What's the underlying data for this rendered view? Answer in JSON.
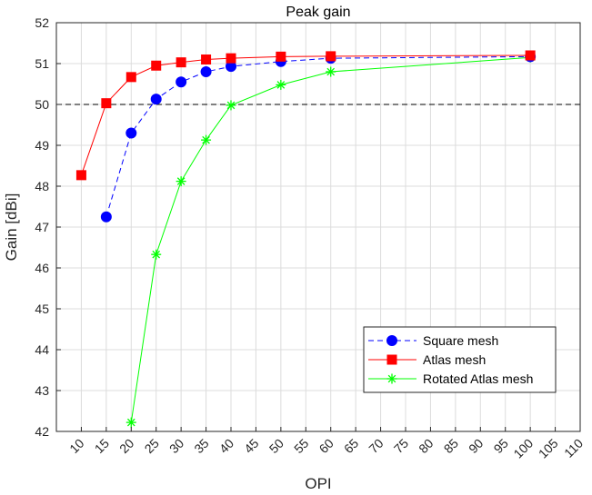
{
  "chart_data": {
    "type": "line",
    "title": "Peak gain",
    "xlabel": "OPI",
    "ylabel": "Gain [dBi]",
    "xlim": [
      5,
      110
    ],
    "ylim": [
      42,
      52
    ],
    "xticks": [
      10,
      15,
      20,
      25,
      30,
      35,
      40,
      45,
      50,
      55,
      60,
      65,
      70,
      75,
      80,
      85,
      90,
      95,
      100,
      105,
      110
    ],
    "yticks": [
      42,
      43,
      44,
      45,
      46,
      47,
      48,
      49,
      50,
      51,
      52
    ],
    "grid": true,
    "legend_position": "bottom-right",
    "reference_line": {
      "y": 50,
      "style": "dashed",
      "color": "#000000"
    },
    "series": [
      {
        "name": "Square mesh",
        "color": "#0000ff",
        "line_style": "dashed",
        "marker": "circle",
        "x": [
          15,
          20,
          25,
          30,
          35,
          40,
          50,
          60,
          100
        ],
        "y": [
          47.25,
          49.3,
          50.13,
          50.55,
          50.8,
          50.93,
          51.05,
          51.13,
          51.17
        ]
      },
      {
        "name": "Atlas mesh",
        "color": "#ff0000",
        "line_style": "solid",
        "marker": "square",
        "x": [
          10,
          15,
          20,
          25,
          30,
          35,
          40,
          50,
          60,
          100
        ],
        "y": [
          48.27,
          50.03,
          50.67,
          50.95,
          51.03,
          51.1,
          51.13,
          51.17,
          51.18,
          51.2
        ]
      },
      {
        "name": "Rotated Atlas mesh",
        "color": "#00ff00",
        "line_style": "solid",
        "marker": "asterisk",
        "x": [
          20,
          25,
          30,
          35,
          40,
          50,
          60,
          100
        ],
        "y": [
          42.22,
          46.33,
          48.12,
          49.13,
          49.98,
          50.48,
          50.8,
          51.15
        ]
      }
    ]
  }
}
